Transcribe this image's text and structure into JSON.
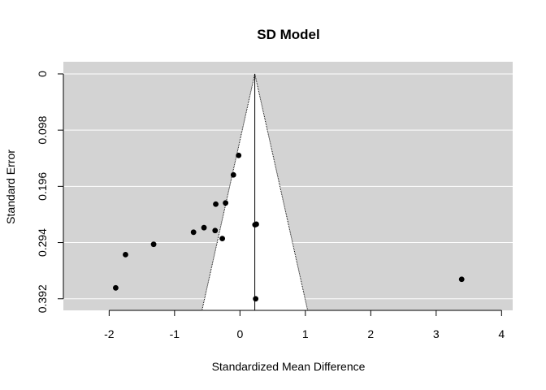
{
  "chart_data": {
    "type": "scatter",
    "title": "SD Model",
    "xlabel": "Standardized Mean Difference",
    "ylabel": "Standard Error",
    "xlim": [
      -2.7,
      4.17
    ],
    "ylim": [
      0.4122,
      -0.0212
    ],
    "y_reversed": true,
    "x_ticks": [
      -2,
      -1,
      0,
      1,
      2,
      3,
      4
    ],
    "x_tick_labels": [
      "-2",
      "-1",
      "0",
      "1",
      "2",
      "3",
      "4"
    ],
    "y_ticks": [
      0,
      0.098,
      0.196,
      0.294,
      0.392
    ],
    "y_tick_labels": [
      "0",
      "0.098",
      "0.196",
      "0.294",
      "0.392"
    ],
    "grid": "horizontal",
    "background_color": "#d3d3d3",
    "funnel_color": "#ffffff",
    "point_color": "#000000",
    "reference_line": 0.227,
    "funnel_se_max": 0.4122,
    "x": [
      -0.02,
      -0.1,
      -0.37,
      -0.22,
      0.23,
      0.25,
      -0.71,
      -0.55,
      -0.38,
      -0.27,
      -1.32,
      -1.75,
      -1.9,
      3.39,
      0.24
    ],
    "y": [
      0.142,
      0.176,
      0.227,
      0.225,
      0.263,
      0.262,
      0.276,
      0.268,
      0.273,
      0.287,
      0.297,
      0.315,
      0.373,
      0.358,
      0.392
    ]
  }
}
